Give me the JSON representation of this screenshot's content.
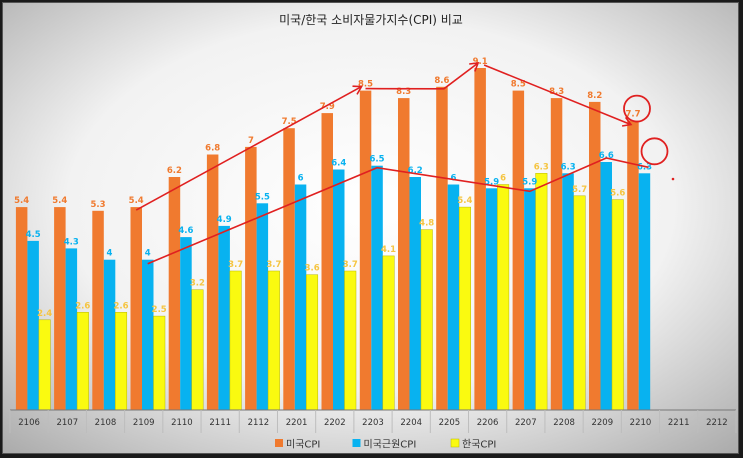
{
  "chart_data": {
    "type": "bar",
    "title": "미국/한국 소비자물가지수(CPI) 비교",
    "categories": [
      "2106",
      "2107",
      "2108",
      "2109",
      "2110",
      "2111",
      "2112",
      "2201",
      "2202",
      "2203",
      "2204",
      "2205",
      "2206",
      "2207",
      "2208",
      "2209",
      "2210",
      "2211",
      "2212"
    ],
    "series": [
      {
        "name": "미국CPI",
        "color": "#f07a2f",
        "values": [
          5.4,
          5.4,
          5.3,
          5.4,
          6.2,
          6.8,
          7,
          7.5,
          7.9,
          8.5,
          8.3,
          8.6,
          9.1,
          8.5,
          8.3,
          8.2,
          7.7,
          null,
          null
        ]
      },
      {
        "name": "미국근원CPI",
        "color": "#08b2f0",
        "values": [
          4.5,
          4.3,
          4,
          4,
          4.6,
          4.9,
          5.5,
          6,
          6.4,
          6.5,
          6.2,
          6,
          5.9,
          5.9,
          6.3,
          6.6,
          6.3,
          null,
          null
        ]
      },
      {
        "name": "한국CPI",
        "color": "#fafa10",
        "values": [
          2.4,
          2.6,
          2.6,
          2.5,
          3.2,
          3.7,
          3.7,
          3.6,
          3.7,
          4.1,
          4.8,
          5.4,
          6,
          6.3,
          5.7,
          5.6,
          null,
          null,
          null
        ]
      }
    ],
    "ylim": [
      0,
      9.5
    ],
    "legend_position": "bottom",
    "label_colors": {
      "미국CPI": "#f07a2f",
      "미국근원CPI": "#08b2f0",
      "한국CPI": "#f5c542"
    },
    "annotations": {
      "circled": [
        {
          "series": "미국CPI",
          "category": "2210"
        },
        {
          "series": "미국근원CPI",
          "category": "2210"
        }
      ],
      "trend_lines_color": "#e02020"
    }
  }
}
